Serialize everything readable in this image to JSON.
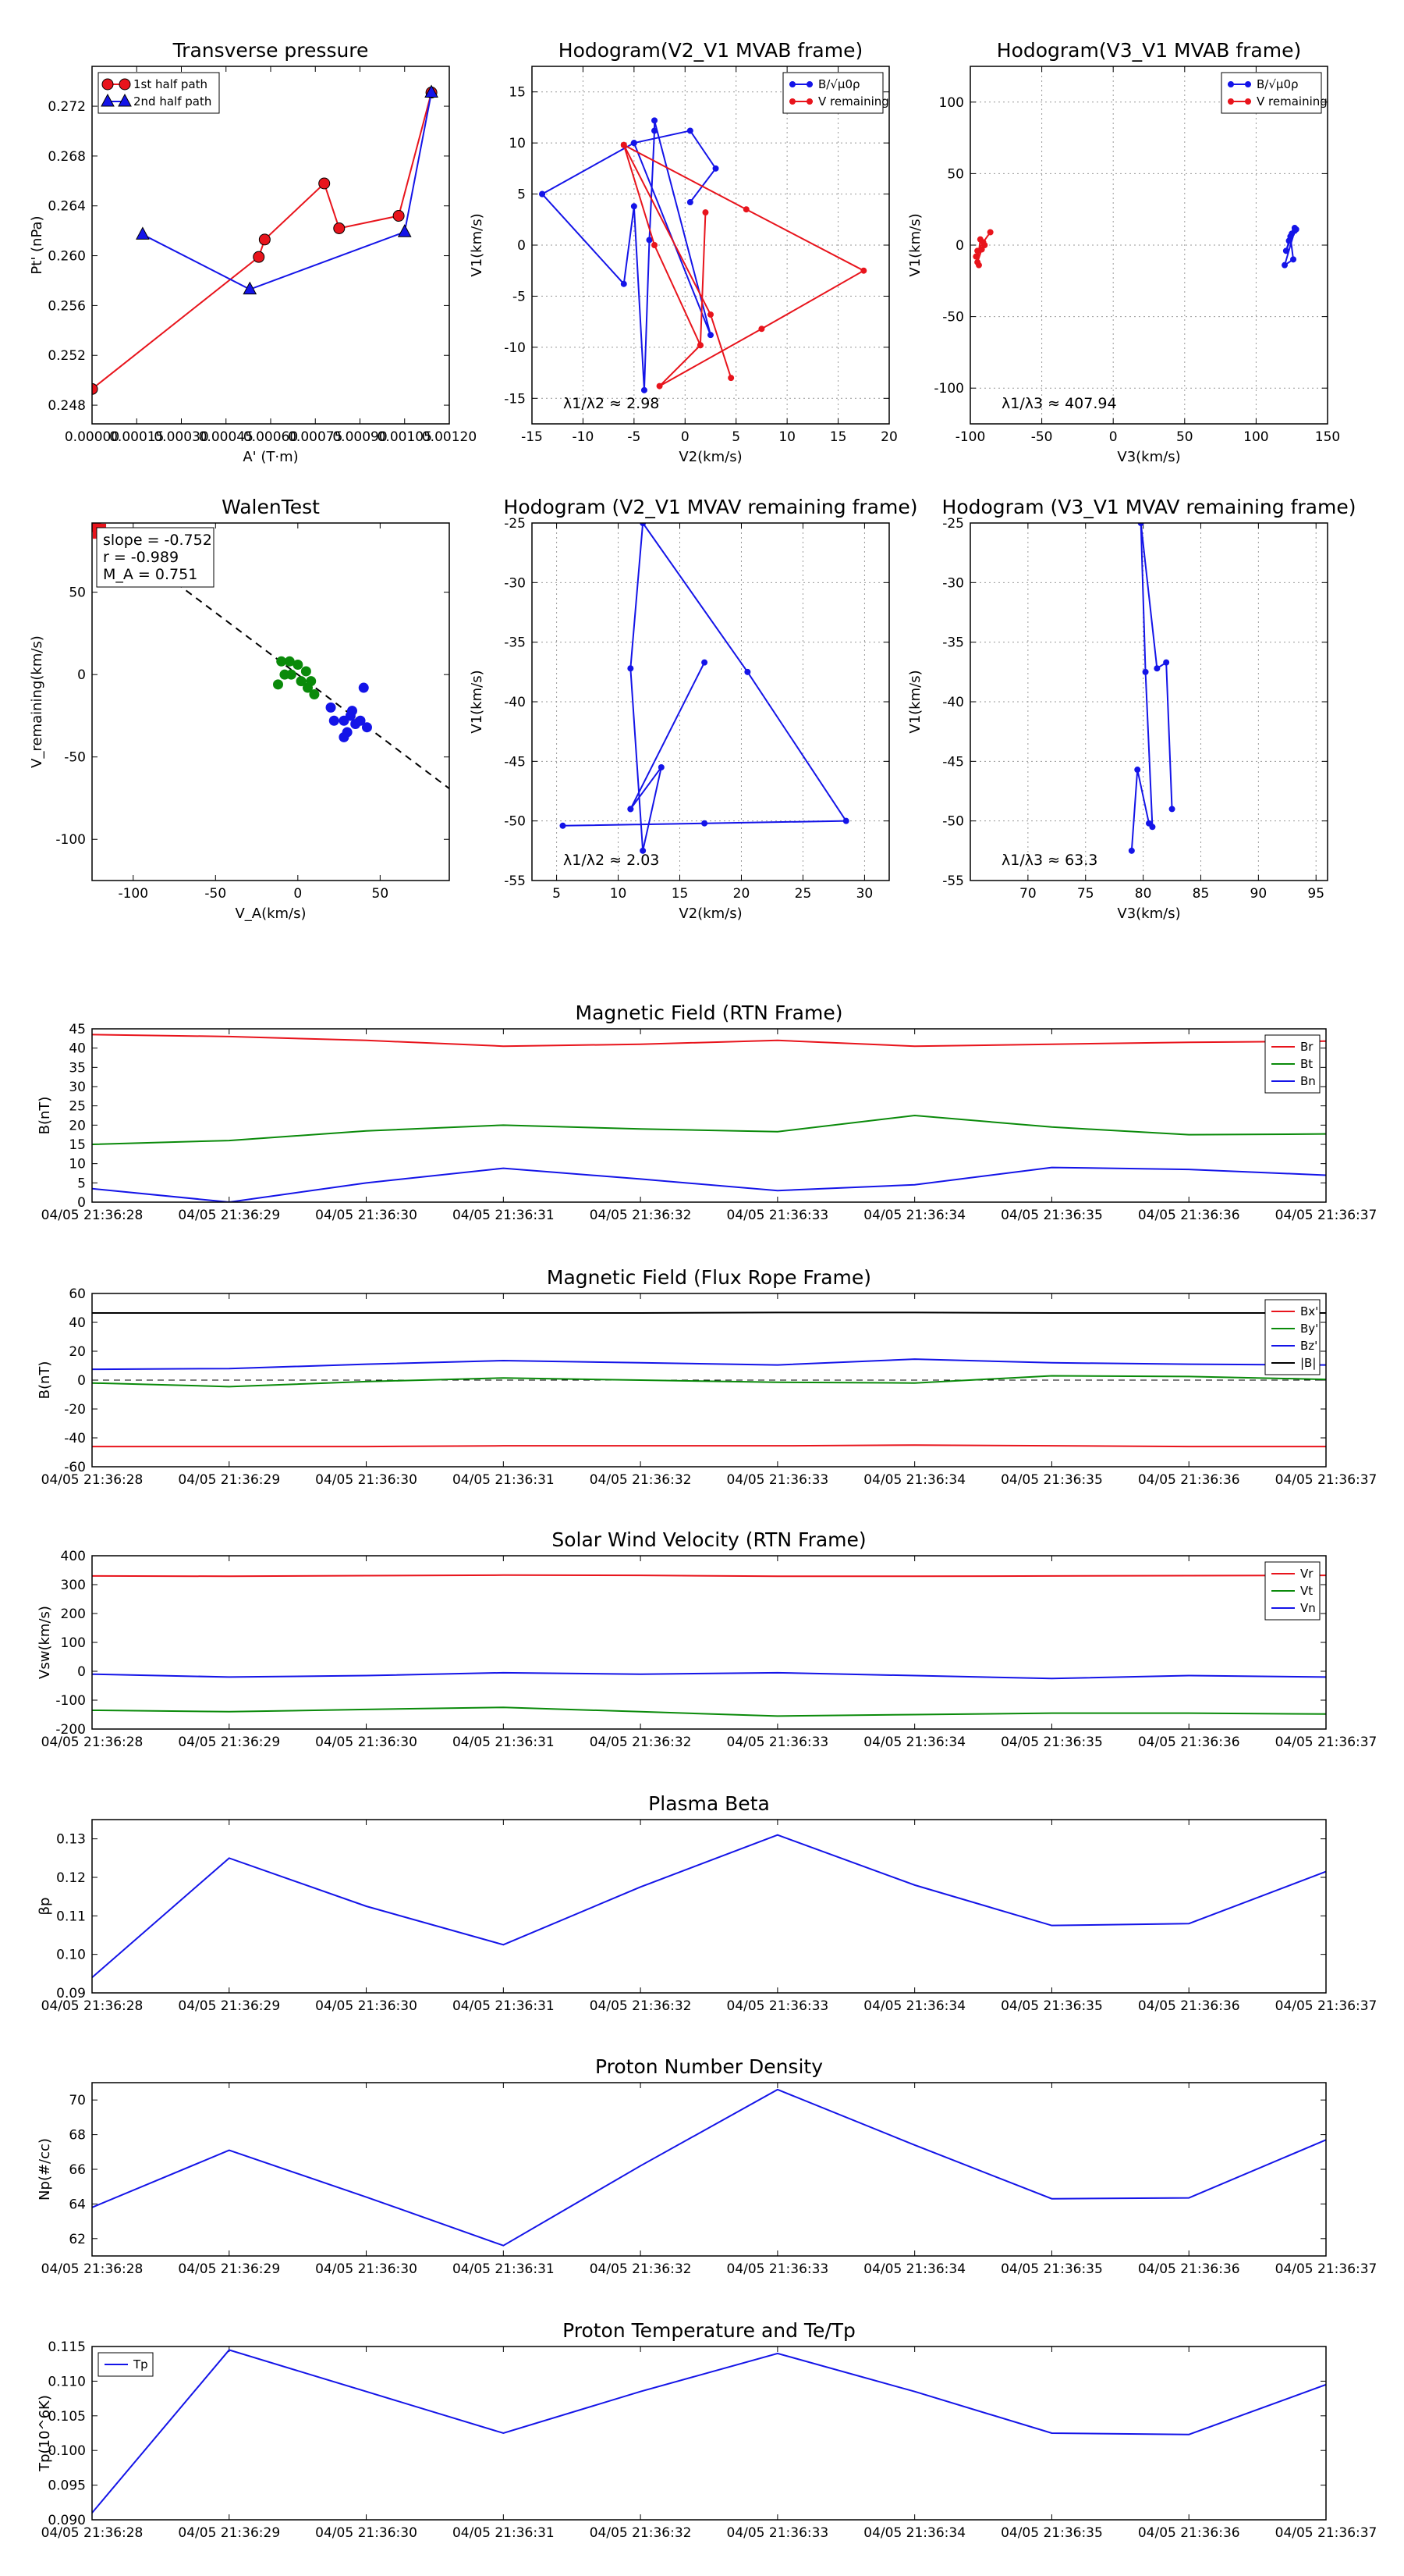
{
  "chart_data": [
    {
      "id": "pt",
      "type": "line",
      "title": "Transverse pressure",
      "xlabel": "A' (T·m)",
      "ylabel": "Pt' (nPa)",
      "xlim": [
        0.0,
        0.0012
      ],
      "ylim": [
        0.2465,
        0.2752
      ],
      "xticks": [
        0.0,
        0.00015,
        0.0003,
        0.00045,
        0.0006,
        0.00075,
        0.0009,
        0.00105,
        0.0012
      ],
      "xtick_labels": [
        "0.00000",
        "0.00015",
        "0.00030",
        "0.00045",
        "0.00060",
        "0.00075",
        "0.00090",
        "0.00105",
        "0.00120"
      ],
      "yticks": [
        0.248,
        0.252,
        0.256,
        0.26,
        0.264,
        0.268,
        0.272
      ],
      "ytick_labels": [
        "0.248",
        "0.252",
        "0.256",
        "0.260",
        "0.264",
        "0.268",
        "0.272"
      ],
      "legend_loc": "top-left",
      "series": [
        {
          "name": "1st half path",
          "color": "#e8141c",
          "marker": "circle",
          "x": [
            0.0,
            0.00056,
            0.00058,
            0.00078,
            0.00083,
            0.00103,
            0.00114
          ],
          "y": [
            0.2493,
            0.2599,
            0.2613,
            0.2658,
            0.2622,
            0.2632,
            0.2731
          ]
        },
        {
          "name": "2nd half path",
          "color": "#1414e8",
          "marker": "triangle",
          "x": [
            0.00017,
            0.00053,
            0.00105,
            0.00114
          ],
          "y": [
            0.2617,
            0.2573,
            0.2619,
            0.2731
          ]
        }
      ]
    },
    {
      "id": "hodo1",
      "type": "line",
      "title": "Hodogram(V2_V1 MVAB frame)",
      "xlabel": "V2(km/s)",
      "ylabel": "V1(km/s)",
      "xlim": [
        -15,
        20
      ],
      "ylim": [
        -17.5,
        17.5
      ],
      "xticks": [
        -15,
        -10,
        -5,
        0,
        5,
        10,
        15,
        20
      ],
      "yticks": [
        -15,
        -10,
        -5,
        0,
        5,
        10,
        15
      ],
      "grid": true,
      "legend_loc": "top-right",
      "annotation": "λ1/λ2 ≈ 2.98",
      "series": [
        {
          "name": "B/√μ0ρ",
          "color": "#1414e8",
          "marker": "circle",
          "x": [
            -14,
            -6,
            -5,
            -4,
            -3.5,
            -3,
            -3,
            2.5,
            -5,
            -14,
            -5,
            0.5,
            3,
            0.5
          ],
          "y": [
            5,
            -3.8,
            3.8,
            -14.2,
            0.5,
            11.2,
            12.2,
            -8.8,
            10,
            5,
            10,
            11.2,
            7.5,
            4.2
          ]
        },
        {
          "name": "V remaining",
          "color": "#e8141c",
          "marker": "circle",
          "x": [
            -6,
            -3,
            1.5,
            2,
            1.5,
            -2.5,
            7.5,
            17.5,
            6,
            -6,
            2.5,
            4.5
          ],
          "y": [
            9.8,
            0,
            -9.8,
            3.2,
            -9.8,
            -13.8,
            -8.2,
            -2.5,
            3.5,
            9.8,
            -6.8,
            -13
          ]
        }
      ]
    },
    {
      "id": "hodo2",
      "type": "line",
      "title": "Hodogram(V3_V1 MVAB frame)",
      "xlabel": "V3(km/s)",
      "ylabel": "V1(km/s)",
      "xlim": [
        -100,
        150
      ],
      "ylim": [
        -125,
        125
      ],
      "xticks": [
        -100,
        -50,
        0,
        50,
        100,
        150
      ],
      "yticks": [
        -100,
        -50,
        0,
        50,
        100
      ],
      "grid": true,
      "legend_loc": "top-right",
      "annotation": "λ1/λ3 ≈ 407.94",
      "series": [
        {
          "name": "B/√μ0ρ",
          "color": "#1414e8",
          "marker": "circle",
          "x": [
            125,
            128,
            123,
            127,
            121,
            124,
            126,
            120,
            127
          ],
          "y": [
            8,
            11,
            3,
            12,
            -4,
            6,
            -10,
            -14,
            10
          ]
        },
        {
          "name": "V remaining",
          "color": "#e8141c",
          "marker": "circle",
          "x": [
            -90,
            -93,
            -95,
            -92,
            -96,
            -94,
            -95,
            -91,
            -86
          ],
          "y": [
            0,
            4,
            -12,
            -3,
            -8,
            -14,
            -4,
            2,
            9
          ]
        }
      ]
    },
    {
      "id": "walen",
      "type": "scatter",
      "title": "WalenTest",
      "xlabel": "V_A(km/s)",
      "ylabel": "V_remaining(km/s)",
      "xlim": [
        -125,
        92
      ],
      "ylim": [
        -125,
        92
      ],
      "xticks": [
        -100,
        -50,
        0,
        50
      ],
      "yticks": [
        -100,
        -50,
        0,
        50
      ],
      "annotations": [
        "slope = -0.752",
        "r = -0.989",
        "M_A = 0.751"
      ],
      "fit_line": {
        "slope": -0.752,
        "intercept": 0,
        "color": "#000000",
        "style": "dashed"
      },
      "series": [
        {
          "name": "green",
          "color": "#0a8a0a",
          "x": [
            -12,
            -8,
            -5,
            0,
            5,
            8,
            -10,
            -4,
            2,
            10,
            6
          ],
          "y": [
            -6,
            0,
            8,
            6,
            2,
            -4,
            8,
            0,
            -4,
            -12,
            -8
          ]
        },
        {
          "name": "blue",
          "color": "#1414e8",
          "x": [
            20,
            28,
            30,
            35,
            40,
            42,
            33,
            28,
            32,
            38,
            22
          ],
          "y": [
            -20,
            -28,
            -35,
            -30,
            -8,
            -32,
            -22,
            -38,
            -25,
            -28,
            -28
          ]
        },
        {
          "name": "red",
          "color": "#e8141c",
          "x": [
            -120,
            -118,
            -123,
            -121
          ],
          "y": [
            88,
            85,
            90,
            86
          ]
        }
      ]
    },
    {
      "id": "hodo3",
      "type": "line",
      "title": "Hodogram (V2_V1 MVAV remaining frame)",
      "xlabel": "V2(km/s)",
      "ylabel": "V1(km/s)",
      "xlim": [
        3,
        32
      ],
      "ylim": [
        -55,
        -25
      ],
      "xticks": [
        5,
        10,
        15,
        20,
        25,
        30
      ],
      "yticks": [
        -55,
        -50,
        -45,
        -40,
        -35,
        -30,
        -25
      ],
      "grid": true,
      "annotation": "λ1/λ2 ≈ 2.03",
      "series": [
        {
          "name": "V",
          "color": "#1414e8",
          "marker": "circle",
          "x": [
            5.5,
            17,
            28.5,
            20.5,
            12,
            11,
            12,
            13.5,
            11,
            17,
            11
          ],
          "y": [
            -50.4,
            -50.2,
            -50,
            -37.5,
            -25,
            -37.2,
            -52.5,
            -45.5,
            -49,
            -36.7,
            -49
          ]
        }
      ]
    },
    {
      "id": "hodo4",
      "type": "line",
      "title": "Hodogram (V3_V1 MVAV remaining frame)",
      "xlabel": "V3(km/s)",
      "ylabel": "V1(km/s)",
      "xlim": [
        65,
        96
      ],
      "ylim": [
        -55,
        -25
      ],
      "xticks": [
        70,
        75,
        80,
        85,
        90,
        95
      ],
      "yticks": [
        -55,
        -50,
        -45,
        -40,
        -35,
        -30,
        -25
      ],
      "grid": true,
      "annotation": "λ1/λ3 ≈ 63.3",
      "series": [
        {
          "name": "V",
          "color": "#1414e8",
          "marker": "circle",
          "x": [
            79,
            79.5,
            80.5,
            80.8,
            80.2,
            79.8,
            81.2,
            82,
            82.5
          ],
          "y": [
            -52.5,
            -45.7,
            -50.2,
            -50.5,
            -37.5,
            -25,
            -37.2,
            -36.7,
            -49
          ]
        }
      ]
    },
    {
      "id": "bmag",
      "type": "line",
      "title": "Magnetic Field (RTN Frame)",
      "xlabel": "",
      "ylabel": "B(nT)",
      "xticks_labels": [
        "04/05 21:36:28",
        "04/05 21:36:29",
        "04/05 21:36:30",
        "04/05 21:36:31",
        "04/05 21:36:32",
        "04/05 21:36:33",
        "04/05 21:36:34",
        "04/05 21:36:35",
        "04/05 21:36:36",
        "04/05 21:36:37"
      ],
      "ylim": [
        0,
        45
      ],
      "yticks": [
        0,
        5,
        10,
        15,
        20,
        25,
        30,
        35,
        40,
        45
      ],
      "legend_loc": "top-right",
      "series": [
        {
          "name": "Br",
          "color": "#e8141c",
          "values": [
            43.5,
            43,
            42,
            40.5,
            41,
            42,
            40.5,
            41,
            41.5,
            41.8
          ]
        },
        {
          "name": "Bt",
          "color": "#0a8a0a",
          "values": [
            15,
            16,
            18.5,
            20,
            19,
            18.3,
            22.5,
            19.5,
            17.5,
            17.7
          ]
        },
        {
          "name": "Bn",
          "color": "#1414e8",
          "values": [
            3.5,
            0,
            5,
            8.8,
            6,
            3,
            4.5,
            9,
            8.5,
            7
          ]
        }
      ]
    },
    {
      "id": "bflux",
      "type": "line",
      "title": "Magnetic Field (Flux Rope Frame)",
      "xlabel": "",
      "ylabel": "B(nT)",
      "xticks_labels": [
        "04/05 21:36:28",
        "04/05 21:36:29",
        "04/05 21:36:30",
        "04/05 21:36:31",
        "04/05 21:36:32",
        "04/05 21:36:33",
        "04/05 21:36:34",
        "04/05 21:36:35",
        "04/05 21:36:36",
        "04/05 21:36:37"
      ],
      "ylim": [
        -60,
        60
      ],
      "yticks": [
        -60,
        -40,
        -20,
        0,
        20,
        40,
        60
      ],
      "zero_line": true,
      "legend_loc": "top-right",
      "series": [
        {
          "name": "Bx'",
          "color": "#e8141c",
          "values": [
            -46,
            -46,
            -46,
            -45.5,
            -45.5,
            -45.5,
            -45,
            -45.5,
            -46,
            -46
          ]
        },
        {
          "name": "By'",
          "color": "#0a8a0a",
          "values": [
            -2,
            -4.5,
            -1,
            1.5,
            0,
            -1.5,
            -2,
            3,
            2.5,
            0.5
          ]
        },
        {
          "name": "Bz'",
          "color": "#1414e8",
          "values": [
            7.5,
            8,
            11,
            13.5,
            12,
            10.5,
            14.5,
            12,
            11,
            10.5
          ]
        },
        {
          "name": "|B|",
          "color": "#000000",
          "values": [
            46.5,
            46.5,
            46.5,
            46.5,
            46.5,
            46.8,
            46.8,
            46.5,
            46.5,
            46.5
          ]
        }
      ]
    },
    {
      "id": "vsw",
      "type": "line",
      "title": "Solar Wind Velocity (RTN Frame)",
      "xlabel": "",
      "ylabel": "Vsw(km/s)",
      "xticks_labels": [
        "04/05 21:36:28",
        "04/05 21:36:29",
        "04/05 21:36:30",
        "04/05 21:36:31",
        "04/05 21:36:32",
        "04/05 21:36:33",
        "04/05 21:36:34",
        "04/05 21:36:35",
        "04/05 21:36:36",
        "04/05 21:36:37"
      ],
      "ylim": [
        -200,
        400
      ],
      "yticks": [
        -200,
        -100,
        0,
        100,
        200,
        300,
        400
      ],
      "legend_loc": "top-right",
      "series": [
        {
          "name": "Vr",
          "color": "#e8141c",
          "values": [
            330,
            329,
            331,
            333,
            332,
            329,
            329,
            330,
            331,
            332
          ]
        },
        {
          "name": "Vt",
          "color": "#0a8a0a",
          "values": [
            -135,
            -140,
            -132,
            -125,
            -140,
            -155,
            -150,
            -145,
            -145,
            -148
          ]
        },
        {
          "name": "Vn",
          "color": "#1414e8",
          "values": [
            -10,
            -20,
            -15,
            -5,
            -10,
            -5,
            -15,
            -25,
            -15,
            -20
          ]
        }
      ]
    },
    {
      "id": "beta",
      "type": "line",
      "title": "Plasma Beta",
      "xlabel": "",
      "ylabel": "βp",
      "xticks_labels": [
        "04/05 21:36:28",
        "04/05 21:36:29",
        "04/05 21:36:30",
        "04/05 21:36:31",
        "04/05 21:36:32",
        "04/05 21:36:33",
        "04/05 21:36:34",
        "04/05 21:36:35",
        "04/05 21:36:36",
        "04/05 21:36:37"
      ],
      "ylim": [
        0.09,
        0.135
      ],
      "yticks": [
        0.09,
        0.1,
        0.11,
        0.12,
        0.13
      ],
      "ytick_labels": [
        "0.09",
        "0.10",
        "0.11",
        "0.12",
        "0.13"
      ],
      "series": [
        {
          "name": "beta",
          "color": "#1414e8",
          "values": [
            0.094,
            0.125,
            0.1125,
            0.1025,
            0.1175,
            0.131,
            0.118,
            0.1075,
            0.108,
            0.1215
          ]
        }
      ]
    },
    {
      "id": "np",
      "type": "line",
      "title": "Proton Number Density",
      "xlabel": "",
      "ylabel": "Np(#/cc)",
      "xticks_labels": [
        "04/05 21:36:28",
        "04/05 21:36:29",
        "04/05 21:36:30",
        "04/05 21:36:31",
        "04/05 21:36:32",
        "04/05 21:36:33",
        "04/05 21:36:34",
        "04/05 21:36:35",
        "04/05 21:36:36",
        "04/05 21:36:37"
      ],
      "ylim": [
        61,
        71
      ],
      "yticks": [
        62,
        64,
        66,
        68,
        70
      ],
      "series": [
        {
          "name": "Np",
          "color": "#1414e8",
          "values": [
            63.8,
            67.1,
            64.4,
            61.6,
            66.2,
            70.6,
            67.4,
            64.3,
            64.35,
            67.7
          ]
        }
      ]
    },
    {
      "id": "tp",
      "type": "line",
      "title": "Proton Temperature and Te/Tp",
      "xlabel": "",
      "ylabel": "Tp(10^6K)",
      "xticks_labels": [
        "04/05 21:36:28",
        "04/05 21:36:29",
        "04/05 21:36:30",
        "04/05 21:36:31",
        "04/05 21:36:32",
        "04/05 21:36:33",
        "04/05 21:36:34",
        "04/05 21:36:35",
        "04/05 21:36:36",
        "04/05 21:36:37"
      ],
      "ylim": [
        0.09,
        0.115
      ],
      "yticks": [
        0.09,
        0.095,
        0.1,
        0.105,
        0.11,
        0.115
      ],
      "ytick_labels": [
        "0.090",
        "0.095",
        "0.100",
        "0.105",
        "0.110",
        "0.115"
      ],
      "legend_loc": "top-left",
      "series": [
        {
          "name": "Tp",
          "color": "#1414e8",
          "values": [
            0.091,
            0.1145,
            0.1085,
            0.1025,
            0.1085,
            0.114,
            0.1085,
            0.1025,
            0.1023,
            0.1095
          ]
        }
      ]
    }
  ]
}
